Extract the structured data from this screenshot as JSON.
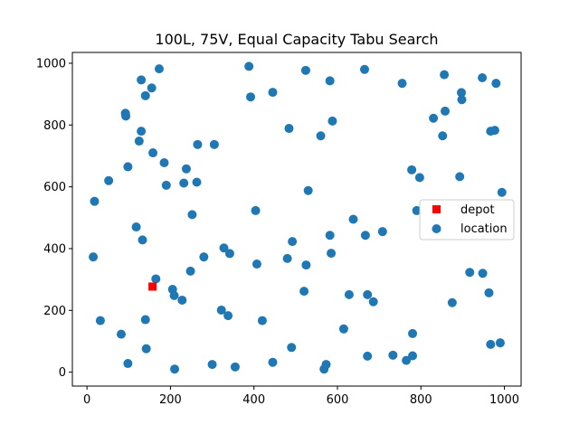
{
  "chart_data": {
    "type": "scatter",
    "title": "100L, 75V, Equal Capacity Tabu Search",
    "xlabel": "",
    "ylabel": "",
    "xlim": [
      -35,
      1040
    ],
    "ylim": [
      -45,
      1035
    ],
    "xticks": [
      0,
      200,
      400,
      600,
      800,
      1000
    ],
    "yticks": [
      0,
      200,
      400,
      600,
      800,
      1000
    ],
    "grid": false,
    "legend_position": "center-right",
    "series": [
      {
        "name": "depot",
        "marker": "square",
        "color": "#ff0000",
        "points": [
          [
            157,
            277
          ]
        ]
      },
      {
        "name": "location",
        "marker": "circle",
        "color": "#1f77b4",
        "points": [
          [
            18,
            553
          ],
          [
            15,
            373
          ],
          [
            32,
            167
          ],
          [
            52,
            620
          ],
          [
            82,
            123
          ],
          [
            92,
            838
          ],
          [
            93,
            829
          ],
          [
            98,
            665
          ],
          [
            98,
            28
          ],
          [
            118,
            470
          ],
          [
            125,
            748
          ],
          [
            130,
            946
          ],
          [
            130,
            780
          ],
          [
            133,
            428
          ],
          [
            140,
            895
          ],
          [
            140,
            170
          ],
          [
            142,
            76
          ],
          [
            155,
            920
          ],
          [
            158,
            710
          ],
          [
            165,
            302
          ],
          [
            173,
            982
          ],
          [
            185,
            678
          ],
          [
            190,
            605
          ],
          [
            205,
            268
          ],
          [
            209,
            248
          ],
          [
            210,
            10
          ],
          [
            228,
            233
          ],
          [
            232,
            612
          ],
          [
            238,
            658
          ],
          [
            248,
            327
          ],
          [
            252,
            510
          ],
          [
            263,
            615
          ],
          [
            265,
            737
          ],
          [
            280,
            373
          ],
          [
            300,
            25
          ],
          [
            305,
            737
          ],
          [
            322,
            201
          ],
          [
            328,
            402
          ],
          [
            338,
            183
          ],
          [
            342,
            384
          ],
          [
            355,
            17
          ],
          [
            388,
            990
          ],
          [
            392,
            891
          ],
          [
            404,
            523
          ],
          [
            407,
            350
          ],
          [
            420,
            167
          ],
          [
            445,
            906
          ],
          [
            445,
            32
          ],
          [
            480,
            368
          ],
          [
            484,
            789
          ],
          [
            490,
            80
          ],
          [
            492,
            423
          ],
          [
            524,
            977
          ],
          [
            520,
            262
          ],
          [
            525,
            347
          ],
          [
            530,
            588
          ],
          [
            560,
            765
          ],
          [
            568,
            10
          ],
          [
            573,
            25
          ],
          [
            582,
            943
          ],
          [
            582,
            443
          ],
          [
            585,
            385
          ],
          [
            588,
            813
          ],
          [
            615,
            140
          ],
          [
            628,
            251
          ],
          [
            638,
            495
          ],
          [
            665,
            980
          ],
          [
            667,
            443
          ],
          [
            672,
            52
          ],
          [
            672,
            251
          ],
          [
            686,
            228
          ],
          [
            708,
            455
          ],
          [
            733,
            55
          ],
          [
            755,
            935
          ],
          [
            765,
            38
          ],
          [
            778,
            655
          ],
          [
            780,
            125
          ],
          [
            780,
            53
          ],
          [
            790,
            523
          ],
          [
            797,
            630
          ],
          [
            830,
            822
          ],
          [
            852,
            765
          ],
          [
            856,
            963
          ],
          [
            858,
            845
          ],
          [
            862,
            538
          ],
          [
            875,
            225
          ],
          [
            893,
            633
          ],
          [
            898,
            882
          ],
          [
            897,
            905
          ],
          [
            917,
            323
          ],
          [
            947,
            953
          ],
          [
            948,
            320
          ],
          [
            963,
            257
          ],
          [
            967,
            780
          ],
          [
            967,
            90
          ],
          [
            977,
            783
          ],
          [
            980,
            935
          ],
          [
            990,
            95
          ],
          [
            994,
            582
          ]
        ]
      }
    ]
  }
}
